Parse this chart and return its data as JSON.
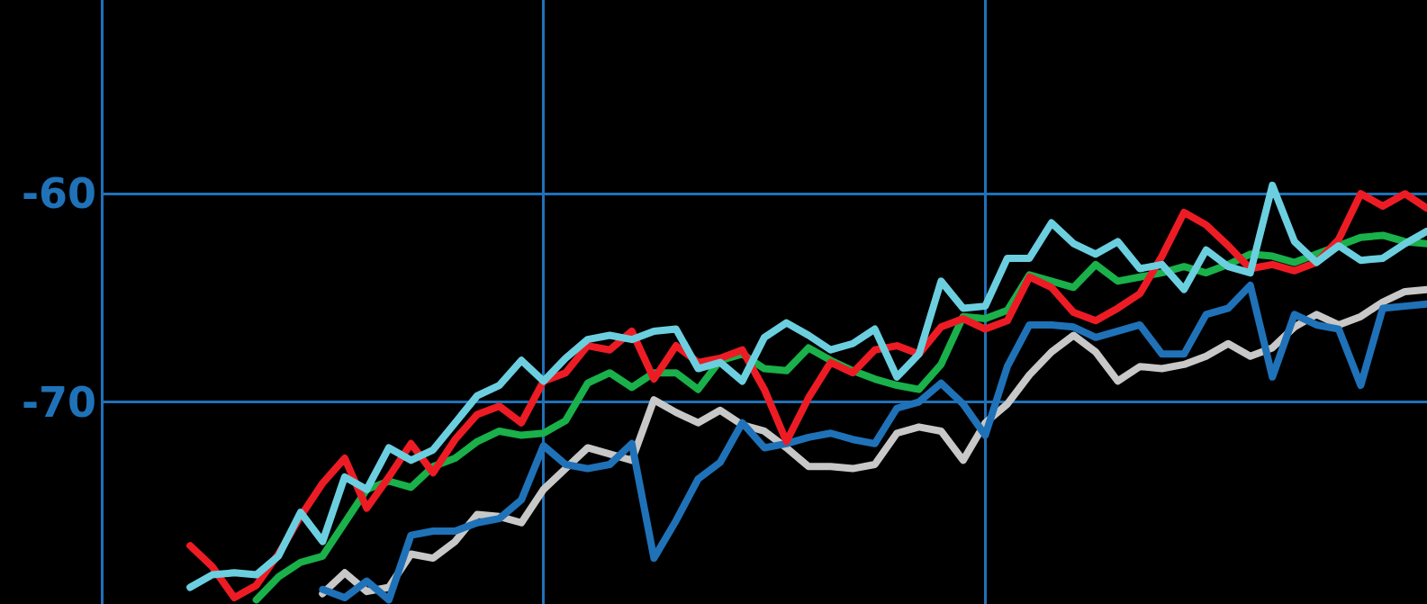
{
  "chart_data": {
    "type": "line",
    "categories": [
      null,
      null,
      null,
      null,
      null,
      null,
      null,
      null,
      null,
      null,
      null,
      null,
      null,
      null,
      null,
      null,
      null,
      null,
      null,
      null,
      null,
      null,
      null,
      null,
      null,
      null,
      null,
      null,
      null,
      null,
      null,
      null,
      null,
      null,
      null,
      null,
      null,
      null,
      null,
      null,
      null,
      null,
      null,
      null,
      null,
      null,
      null,
      null,
      null,
      null,
      null,
      null,
      null,
      null,
      null,
      null,
      null,
      null,
      null,
      null,
      null
    ],
    "ylim": [
      -79.7,
      -50.7
    ],
    "yticks": [
      -70,
      -60
    ],
    "grid": true,
    "tick_labels": "y",
    "series": [
      {
        "color": "#c8c8c8",
        "values": [
          null,
          null,
          null,
          null,
          null,
          null,
          null,
          null,
          null,
          null,
          -79.2,
          -78.2,
          -79.1,
          -78.9,
          -77.3,
          -77.5,
          -76.7,
          -75.4,
          -75.5,
          -75.8,
          -74.2,
          -73.2,
          -72.2,
          -72.5,
          -72.8,
          -69.9,
          -70.5,
          -71.0,
          -70.4,
          -71.1,
          -71.4,
          -72.2,
          -73.1,
          -73.1,
          -73.2,
          -73.0,
          -71.5,
          -71.2,
          -71.4,
          -72.8,
          -71.0,
          -70.1,
          -68.7,
          -67.6,
          -66.8,
          -67.6,
          -69.0,
          -68.3,
          -68.4,
          -68.2,
          -67.8,
          -67.2,
          -67.8,
          -67.4,
          -66.4,
          -65.8,
          -66.3,
          -65.9,
          -65.2,
          -64.7,
          -64.6
        ]
      },
      {
        "color": "#1ab04a",
        "values": [
          null,
          null,
          null,
          null,
          null,
          null,
          null,
          -79.5,
          -78.4,
          -77.7,
          -77.4,
          -75.8,
          -74.2,
          -73.8,
          -74.1,
          -73.1,
          -72.7,
          -71.9,
          -71.4,
          -71.6,
          -71.5,
          -70.9,
          -69.1,
          -68.6,
          -69.3,
          -68.6,
          -68.6,
          -69.4,
          -68.0,
          -67.7,
          -68.4,
          -68.5,
          -67.4,
          -68.0,
          -68.5,
          -68.9,
          -69.2,
          -69.4,
          -68.2,
          -65.9,
          -66.0,
          -65.6,
          -63.9,
          -64.2,
          -64.5,
          -63.4,
          -64.2,
          -64.0,
          -63.8,
          -63.5,
          -63.8,
          -63.4,
          -62.9,
          -63.0,
          -63.3,
          -62.9,
          -62.5,
          -62.1,
          -62.0,
          -62.3,
          -62.4
        ]
      },
      {
        "color": "#1f72b8",
        "values": [
          null,
          null,
          null,
          null,
          null,
          null,
          null,
          null,
          null,
          null,
          -79.0,
          -79.4,
          -78.6,
          -79.5,
          -76.4,
          -76.2,
          -76.2,
          -75.8,
          -75.6,
          -74.7,
          -72.1,
          -73.0,
          -73.2,
          -73.0,
          -72.0,
          -77.5,
          -75.7,
          -73.7,
          -72.9,
          -71.0,
          -72.2,
          -72.0,
          -71.7,
          -71.5,
          -71.8,
          -72.0,
          -70.3,
          -70.0,
          -69.1,
          -70.1,
          -71.6,
          -68.3,
          -66.3,
          -66.3,
          -66.4,
          -66.9,
          -66.6,
          -66.3,
          -67.7,
          -67.7,
          -65.8,
          -65.5,
          -64.4,
          -68.8,
          -65.8,
          -66.3,
          -66.5,
          -69.2,
          -65.5,
          -65.4,
          -65.3
        ]
      },
      {
        "color": "#ed1c24",
        "values": [
          null,
          null,
          null,
          null,
          -76.9,
          -77.9,
          -79.4,
          -78.8,
          -77.3,
          -75.5,
          -73.9,
          -72.7,
          -75.1,
          -73.6,
          -72.0,
          -73.4,
          -71.8,
          -70.6,
          -70.2,
          -71.0,
          -69.0,
          -68.6,
          -67.3,
          -67.5,
          -66.6,
          -68.9,
          -67.3,
          -68.1,
          -67.9,
          -67.5,
          -69.4,
          -71.9,
          -69.8,
          -68.1,
          -68.6,
          -67.5,
          -67.3,
          -67.7,
          -66.4,
          -66.0,
          -66.5,
          -66.1,
          -64.0,
          -64.5,
          -65.7,
          -66.1,
          -65.5,
          -64.8,
          -63.0,
          -60.9,
          -61.5,
          -62.5,
          -63.6,
          -63.4,
          -63.7,
          -63.3,
          -62.2,
          -60.0,
          -60.6,
          -60.0,
          -60.7
        ]
      },
      {
        "color": "#6ccfe0",
        "values": [
          null,
          null,
          null,
          null,
          -78.9,
          -78.3,
          -78.2,
          -78.3,
          -77.4,
          -75.3,
          -76.7,
          -73.6,
          -74.2,
          -72.2,
          -72.8,
          -72.3,
          -71.0,
          -69.7,
          -69.2,
          -68.0,
          -69.0,
          -67.9,
          -67.0,
          -66.8,
          -67.0,
          -66.6,
          -66.5,
          -68.4,
          -68.1,
          -69.0,
          -66.9,
          -66.2,
          -66.8,
          -67.5,
          -67.2,
          -66.5,
          -68.8,
          -67.7,
          -64.2,
          -65.5,
          -65.4,
          -63.1,
          -63.1,
          -61.4,
          -62.4,
          -62.9,
          -62.3,
          -63.6,
          -63.4,
          -64.6,
          -62.7,
          -63.5,
          -63.8,
          -59.6,
          -62.3,
          -63.3,
          -62.5,
          -63.2,
          -63.1,
          -62.4,
          -61.8
        ]
      }
    ]
  }
}
